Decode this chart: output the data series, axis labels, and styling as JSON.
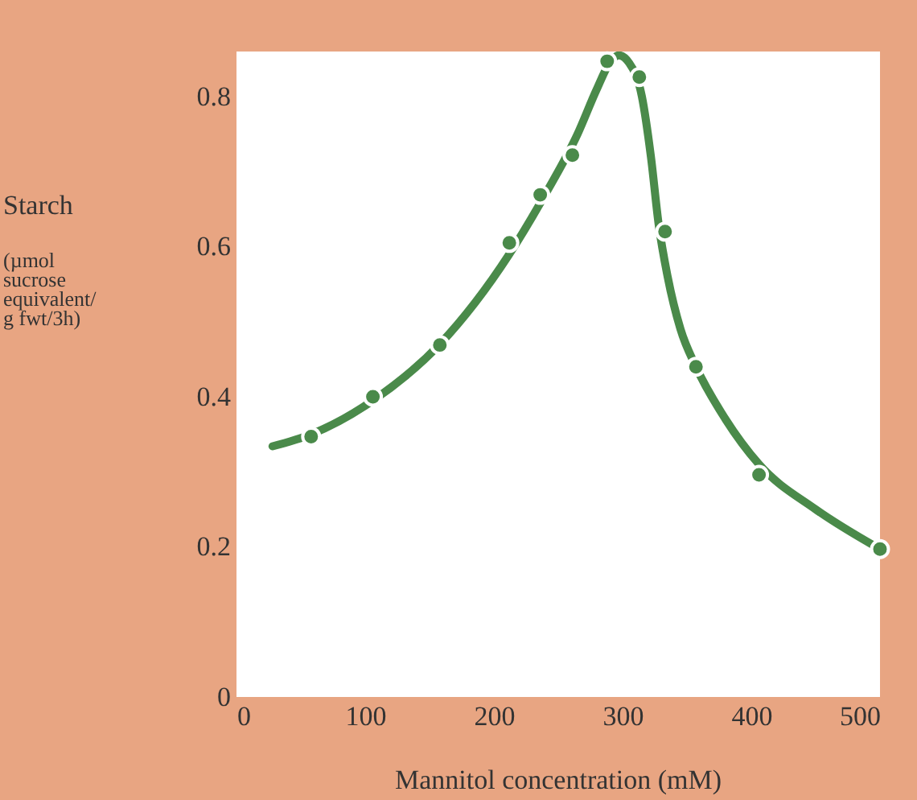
{
  "chart_data": {
    "type": "scatter",
    "xlabel": "Mannitol concentration  (mM)",
    "ylabel": "Starch\n\n(µmol\nsucrose\nequivalent/\ng fwt/3h)",
    "xlim": [
      0,
      500
    ],
    "ylim": [
      0,
      0.86
    ],
    "xticks": [
      0,
      100,
      200,
      300,
      400,
      500
    ],
    "yticks": [
      0,
      0.2,
      0.4,
      0.6,
      0.8
    ],
    "grid": false,
    "series": [
      {
        "type": "line",
        "color": "#4a8a4a",
        "line_style": "solid",
        "marker": "none",
        "x": [
          28,
          58,
          106,
          158,
          212,
          240,
          265,
          280,
          290,
          297,
          305,
          315,
          322,
          328,
          335,
          345,
          357,
          380,
          406,
          450,
          500
        ],
        "values": [
          0.334,
          0.35,
          0.395,
          0.47,
          0.59,
          0.67,
          0.75,
          0.81,
          0.845,
          0.855,
          0.845,
          0.8,
          0.72,
          0.63,
          0.56,
          0.49,
          0.44,
          0.37,
          0.31,
          0.25,
          0.197
        ]
      },
      {
        "color": "#4a8a4a",
        "marker": "circle",
        "x": [
          58,
          106,
          158,
          212,
          236,
          261,
          288,
          313,
          333,
          357,
          406,
          500
        ],
        "values": [
          0.347,
          0.4,
          0.469,
          0.605,
          0.669,
          0.722,
          0.847,
          0.826,
          0.62,
          0.44,
          0.296,
          0.197
        ]
      }
    ]
  }
}
